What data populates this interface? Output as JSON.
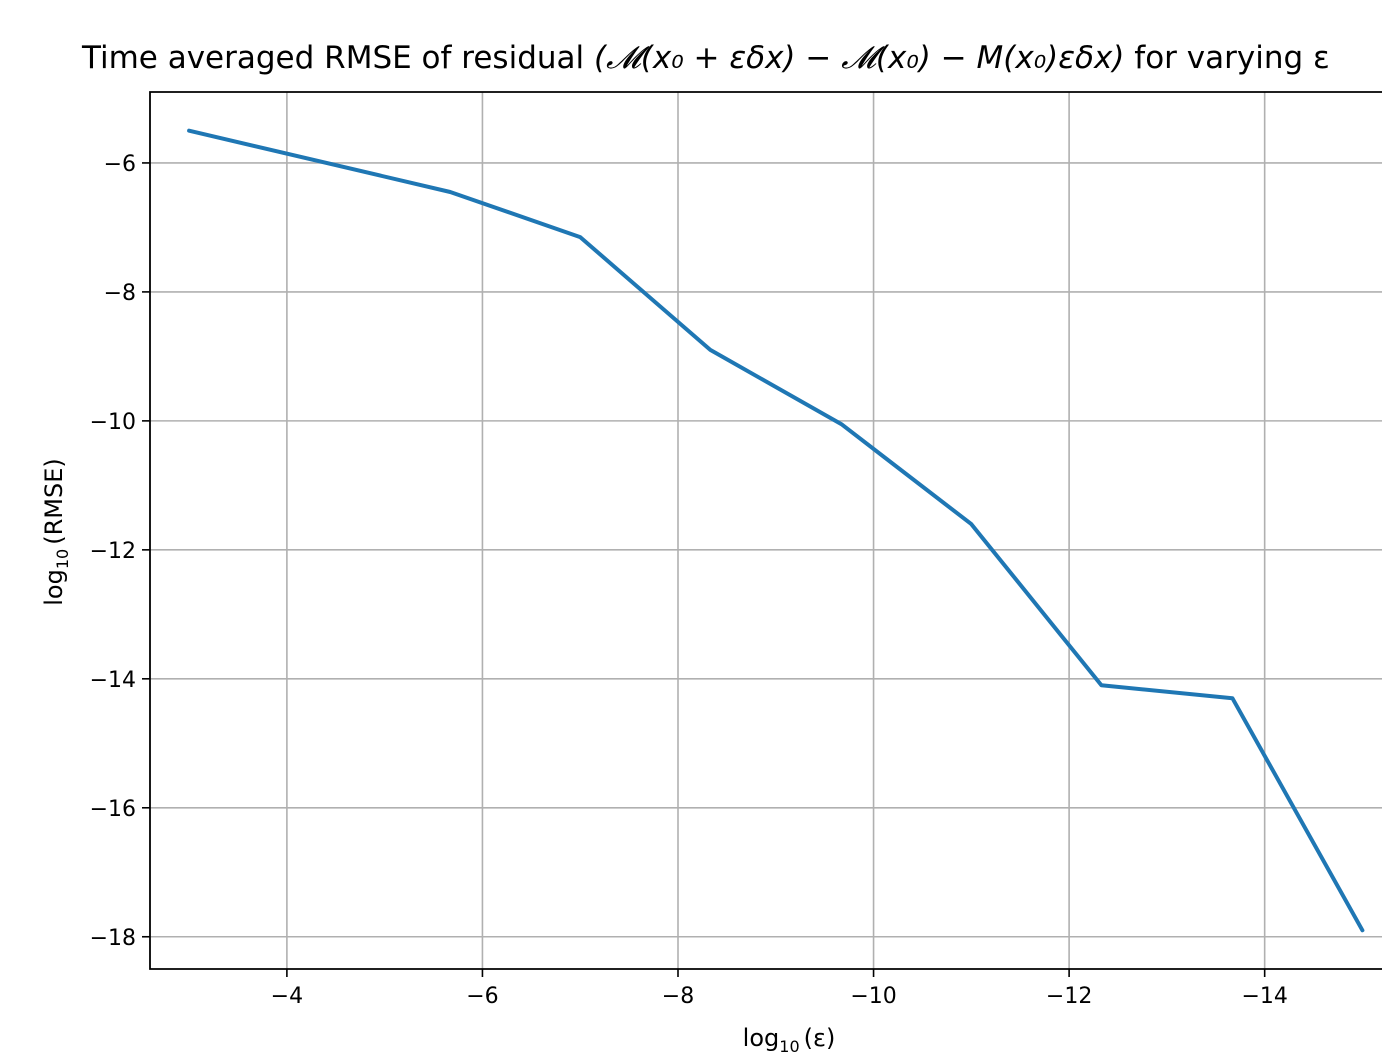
{
  "chart_data": {
    "type": "line",
    "title": {
      "prefix": "Time averaged RMSE of residual ",
      "math": "(𝓜(x₀ + εδx) − 𝓜(x₀) − M(x₀)εδx)",
      "suffix": " for varying ε"
    },
    "xlabel": {
      "base": "log",
      "sub": "10",
      "arg": "(ε)"
    },
    "ylabel": {
      "base": "log",
      "sub": "10",
      "arg": "(RMSE)"
    },
    "x_inverted": true,
    "xlim": [
      -2.6,
      -15.2
    ],
    "ylim": [
      -18.5,
      -4.9
    ],
    "grid": true,
    "xticks": [
      -4,
      -6,
      -8,
      -10,
      -12,
      -14
    ],
    "xtick_labels": [
      "−4",
      "−6",
      "−8",
      "−10",
      "−12",
      "−14"
    ],
    "yticks": [
      -6,
      -8,
      -10,
      -12,
      -14,
      -16,
      -18
    ],
    "ytick_labels": [
      "−6",
      "−8",
      "−10",
      "−12",
      "−14",
      "−16",
      "−18"
    ],
    "series": [
      {
        "color": "#1f77b4",
        "x": [
          -3.0,
          -5.67,
          -7.0,
          -8.33,
          -9.67,
          -11.0,
          -12.33,
          -13.67,
          -15.0
        ],
        "y": [
          -5.5,
          -6.45,
          -7.15,
          -8.9,
          -10.05,
          -11.6,
          -14.1,
          -14.3,
          -17.9
        ]
      }
    ]
  }
}
